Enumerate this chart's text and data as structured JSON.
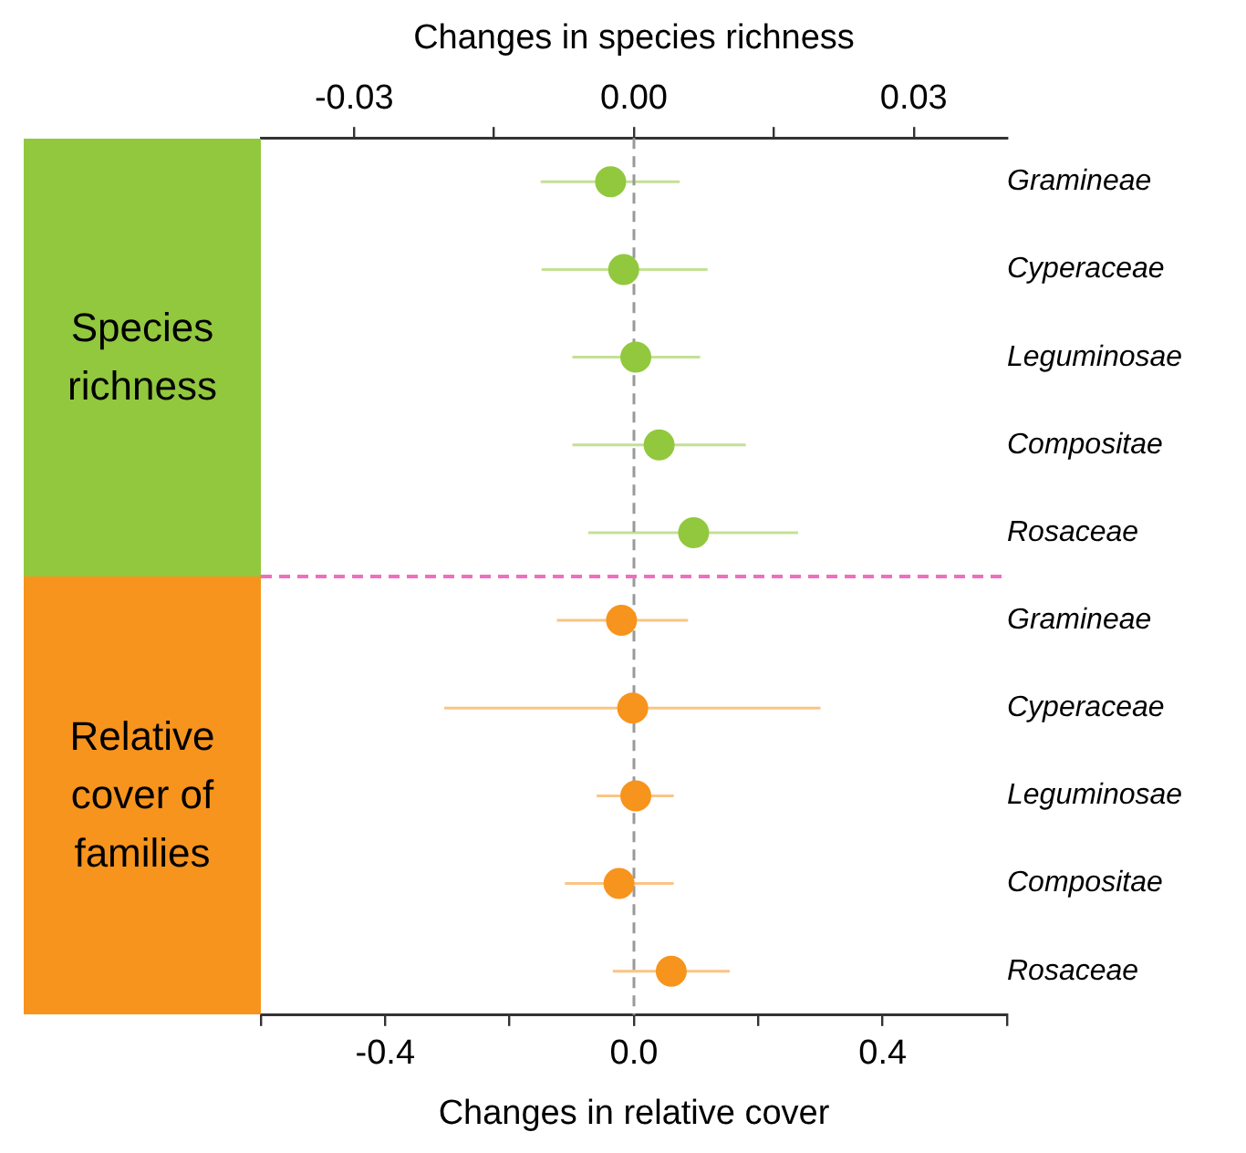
{
  "chart_data": {
    "type": "scatter",
    "orientation": "horizontal",
    "xlabel": "Changes in relative cover",
    "x2label": "Changes in species richness",
    "categories": [
      "Gramineae",
      "Cyperaceae",
      "Leguminosae",
      "Compositae",
      "Rosaceae",
      "Gramineae",
      "Cyperaceae",
      "Leguminosae",
      "Compositae",
      "Rosaceae"
    ],
    "xlim": [
      -0.6,
      0.6
    ],
    "xticks": [
      {
        "value": -0.6,
        "label": null
      },
      -0.4,
      {
        "value": -0.2,
        "label": null
      },
      {
        "value": 0,
        "label": "0.0"
      },
      {
        "value": 0.2,
        "label": null
      },
      0.4,
      {
        "value": 0.6,
        "label": null
      }
    ],
    "x2lim": [
      -0.04,
      0.04
    ],
    "x2ticks": [
      -0.03,
      {
        "value": -0.015,
        "label": null
      },
      {
        "value": 0,
        "label": "0.00"
      },
      {
        "value": 0.015,
        "label": null
      },
      0.03
    ],
    "marker": "circle",
    "grid": false,
    "series": [
      {
        "color": "#92c83e",
        "axis": "x2",
        "values": [
          -0.0025,
          -0.0011,
          0.0002,
          0.0027,
          0.0064,
          null,
          null,
          null,
          null,
          null
        ],
        "errors": [
          [
            -0.01,
            0.0049
          ],
          [
            -0.0099,
            0.0079
          ],
          [
            -0.0066,
            0.0071
          ],
          [
            -0.0066,
            0.012
          ],
          [
            -0.0049,
            0.0176
          ],
          null,
          null,
          null,
          null,
          null
        ]
      },
      {
        "color": "#f7941d",
        "values": [
          null,
          null,
          null,
          null,
          null,
          -0.02,
          -0.002,
          0.003,
          -0.024,
          0.06
        ],
        "errors": [
          null,
          null,
          null,
          null,
          null,
          [
            -0.124,
            0.087
          ],
          [
            -0.305,
            0.3
          ],
          [
            -0.06,
            0.064
          ],
          [
            -0.111,
            0.064
          ],
          [
            -0.034,
            0.154
          ]
        ]
      }
    ],
    "ref_lines": [
      {
        "axis": "x",
        "value": 0,
        "color": "#999999",
        "line_style": "dashed"
      }
    ],
    "annotations": [
      "Species richness",
      "Relative cover of families"
    ]
  }
}
